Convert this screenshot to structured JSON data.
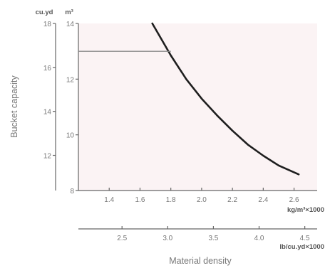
{
  "chart_data": {
    "type": "line",
    "ylabel": "Bucket capacity",
    "xlabel": "Material density",
    "y_axis_left": {
      "unit": "cu.yd",
      "range": [
        10.4,
        18
      ],
      "ticks": [
        12,
        14,
        16,
        18
      ]
    },
    "y_axis_right": {
      "unit": "m³",
      "range": [
        8,
        14
      ],
      "ticks": [
        8,
        10,
        12,
        14
      ]
    },
    "x_axis_metric": {
      "unit": "kg/m³×1000",
      "range": [
        1.2,
        2.75
      ],
      "ticks": [
        1.4,
        1.6,
        1.8,
        2.0,
        2.2,
        2.4,
        2.6
      ]
    },
    "x_axis_imperial": {
      "unit": "lb/cu.yd×1000",
      "ticks": [
        2.5,
        3.0,
        3.5,
        4.0,
        4.5
      ]
    },
    "series": [
      {
        "units": "kg/m³×1000 vs m³",
        "x": [
          1.68,
          1.8,
          1.9,
          2.0,
          2.1,
          2.2,
          2.3,
          2.4,
          2.5,
          2.63
        ],
        "y": [
          14.0,
          12.85,
          12.0,
          11.3,
          10.7,
          10.15,
          9.65,
          9.25,
          8.9,
          8.58
        ]
      },
      {
        "units": "kg/m³×1000 vs m³",
        "x": [
          1.2,
          1.8
        ],
        "y": [
          13.0,
          13.0
        ]
      }
    ],
    "colors": {
      "plot_fill": "#fbf3f4",
      "curve": "#1e1e1e",
      "limit_line": "#8a8a8a",
      "axis": "#666666"
    }
  }
}
